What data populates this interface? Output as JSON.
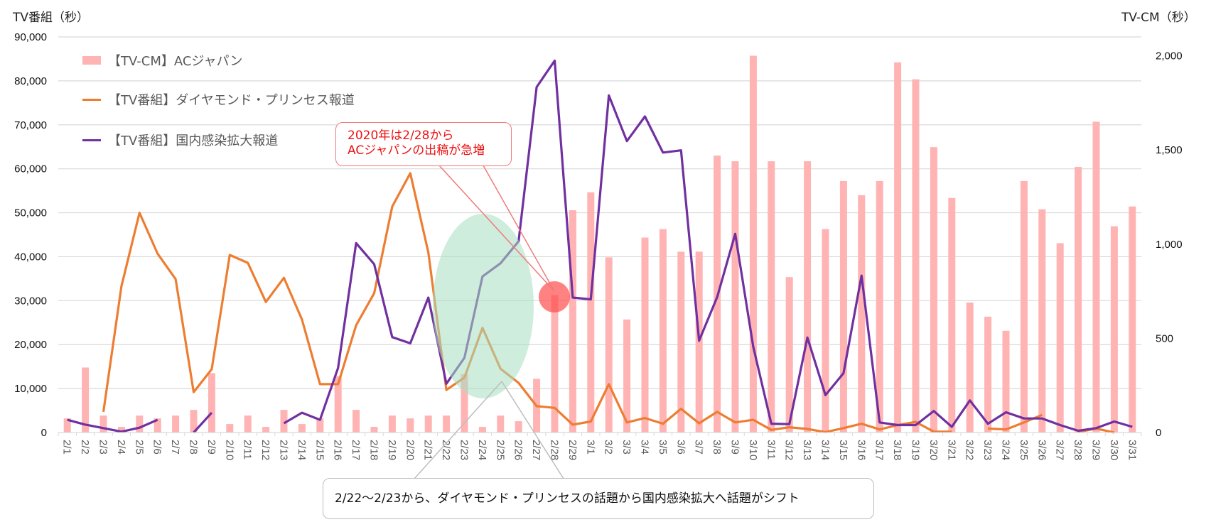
{
  "chart_data": {
    "type": "bar+line",
    "title": "",
    "y_left_label": "TV番組（秒）",
    "y_right_label": "TV-CM（秒）",
    "y_left_lim": [
      0,
      90000
    ],
    "y_right_lim": [
      0,
      2100
    ],
    "y_left_ticks": [
      "0",
      "10,000",
      "20,000",
      "30,000",
      "40,000",
      "50,000",
      "60,000",
      "70,000",
      "80,000",
      "90,000"
    ],
    "y_left_tick_values": [
      0,
      10000,
      20000,
      30000,
      40000,
      50000,
      60000,
      70000,
      80000,
      90000
    ],
    "y_right_ticks": [
      "0",
      "500",
      "1,000",
      "1,500",
      "2,000"
    ],
    "y_right_tick_values": [
      0,
      500,
      1000,
      1500,
      2000
    ],
    "grid": true,
    "legend_position": "top-left",
    "categories": [
      "2/1",
      "2/2",
      "2/3",
      "2/4",
      "2/5",
      "2/6",
      "2/7",
      "2/8",
      "2/9",
      "2/10",
      "2/11",
      "2/12",
      "2/13",
      "2/14",
      "2/15",
      "2/16",
      "2/17",
      "2/18",
      "2/19",
      "2/20",
      "2/21",
      "2/22",
      "2/23",
      "2/24",
      "2/25",
      "2/26",
      "2/27",
      "2/28",
      "2/29",
      "3/1",
      "3/2",
      "3/3",
      "3/4",
      "3/5",
      "3/6",
      "3/7",
      "3/8",
      "3/9",
      "3/10",
      "3/11",
      "3/12",
      "3/13",
      "3/14",
      "3/15",
      "3/16",
      "3/17",
      "3/18",
      "3/19",
      "3/20",
      "3/21",
      "3/22",
      "3/23",
      "3/24",
      "3/25",
      "3/26",
      "3/27",
      "3/28",
      "3/29",
      "3/30",
      "3/31"
    ],
    "series": [
      {
        "name": "【TV-CM】ACジャパン",
        "kind": "bar",
        "axis": "right",
        "color": "#ffb3b3",
        "values": [
          75,
          345,
          90,
          30,
          90,
          75,
          90,
          120,
          315,
          45,
          90,
          30,
          120,
          45,
          75,
          300,
          120,
          30,
          90,
          75,
          90,
          90,
          310,
          30,
          90,
          60,
          285,
          730,
          1180,
          1275,
          930,
          600,
          1035,
          1080,
          960,
          960,
          1470,
          1440,
          2000,
          1440,
          825,
          1440,
          1080,
          1335,
          1260,
          1335,
          1965,
          1875,
          1515,
          1245,
          690,
          615,
          540,
          1335,
          1185,
          1005,
          1410,
          1650,
          1095,
          1200
        ]
      },
      {
        "name": "【TV番組】ダイヤモンド・プリンセス報道",
        "kind": "line",
        "axis": "left",
        "color": "#ed7d31",
        "values": [
          null,
          null,
          4700,
          33300,
          50000,
          40700,
          34900,
          9200,
          14400,
          40400,
          38600,
          29700,
          35200,
          25700,
          11000,
          11000,
          24400,
          31700,
          51400,
          59000,
          41000,
          9700,
          12500,
          23800,
          14500,
          11300,
          6000,
          5600,
          1800,
          2500,
          11000,
          2300,
          3300,
          2000,
          5400,
          2100,
          4700,
          2300,
          2900,
          600,
          1200,
          800,
          100,
          1000,
          2000,
          700,
          1700,
          2400,
          200,
          200,
          null,
          900,
          700,
          2300,
          4000,
          null,
          100,
          900,
          0,
          null
        ]
      },
      {
        "name": "【TV番組】国内感染拡大報道",
        "kind": "line",
        "axis": "left",
        "color": "#7030a0",
        "values": [
          2900,
          1800,
          1000,
          200,
          1100,
          2900,
          null,
          0,
          4500,
          null,
          null,
          null,
          2100,
          4500,
          2900,
          14700,
          43100,
          38300,
          21700,
          20300,
          30700,
          11100,
          17000,
          35500,
          38500,
          43500,
          78600,
          84600,
          30700,
          30300,
          76700,
          66300,
          71900,
          63700,
          64200,
          20900,
          30800,
          45200,
          19500,
          2000,
          1900,
          21600,
          8500,
          13500,
          35700,
          2300,
          1700,
          1700,
          4900,
          1300,
          7300,
          2000,
          4600,
          3200,
          3200,
          1700,
          400,
          1000,
          2500,
          1300
        ]
      }
    ],
    "annotations": [
      {
        "text_line1": "2020年は2/28から",
        "text_line2": "ACジャパンの出稿が急増",
        "color": "#ee1111",
        "target": "2/28"
      },
      {
        "text": "2/22～2/23から、ダイヤモンド・プリンセスの話題から国内感染拡大へ話題がシフト",
        "target": "2/22-2/26"
      }
    ],
    "highlight_colors": {
      "ellipse": "#a8dfc0",
      "circle": "#ff4d4d"
    },
    "gridline_color": "#d9d9d9"
  }
}
